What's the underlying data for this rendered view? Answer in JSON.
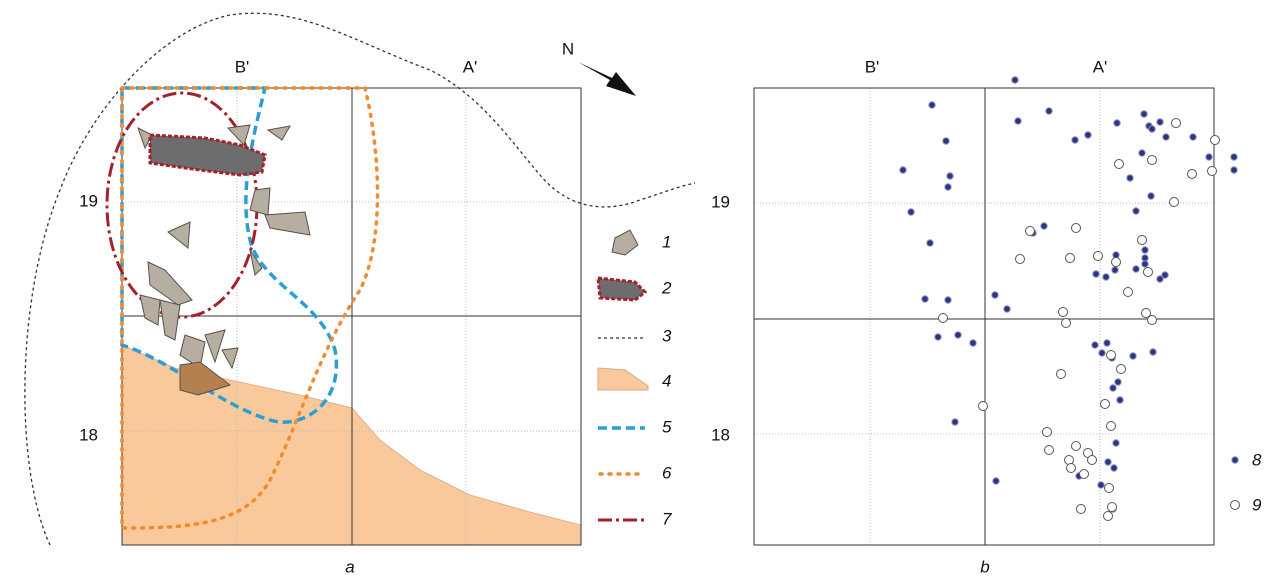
{
  "panel_a": {
    "columns": [
      "B'",
      "A'"
    ],
    "rows": [
      "19",
      "18"
    ],
    "north": "N",
    "legend": [
      "1",
      "2",
      "3",
      "4",
      "5",
      "6",
      "7"
    ],
    "caption": "a"
  },
  "panel_b": {
    "columns": [
      "B'",
      "A'"
    ],
    "rows": [
      "19",
      "18"
    ],
    "legend": [
      "8",
      "9"
    ],
    "caption": "b"
  }
}
